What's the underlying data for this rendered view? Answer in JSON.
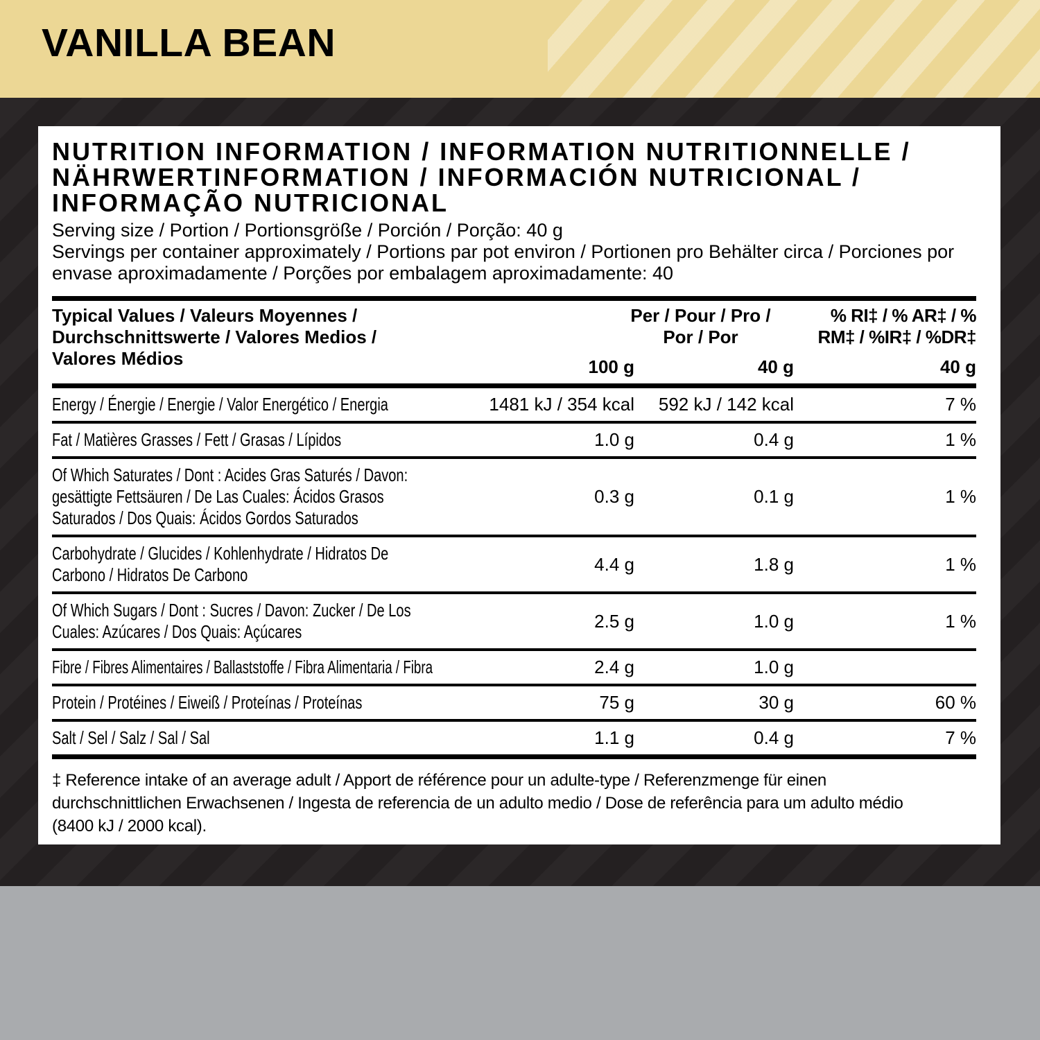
{
  "banner": {
    "flavor": "VANILLA BEAN"
  },
  "card": {
    "title": "NUTRITION INFORMATION / INFORMATION NUTRITIONNELLE / NÄHRWERTINFORMATION / INFORMACIÓN NUTRICIONAL / INFORMAÇÃO NUTRICIONAL",
    "serving_size_line": "Serving size / Portion / Portionsgröße / Porción / Porção: 40 g",
    "servings_per_container_line": "Servings per container approximately / Portions par pot environ / Portionen pro Behälter circa / Porciones por envase aproximadamente / Porções por embalagem aproximadamente: 40",
    "table": {
      "header": {
        "typical_values": "Typical Values / Valeurs Moyennes /\nDurchschnittswerte / Valores Medios /\nValores Médios",
        "per": "Per / Pour / Pro /\nPor / Por",
        "ri": "% RI‡ / % AR‡ / %\nRM‡ / %IR‡ / %DR‡",
        "col_100g": "100 g",
        "col_40g": "40 g",
        "col_ri_40g": "40 g"
      },
      "rows": [
        {
          "label": "Energy / Énergie / Energie / Valor Energético / Energia",
          "per_100g": "1481 kJ / 354 kcal",
          "per_40g": "592 kJ / 142 kcal",
          "ri_pct": "7 %"
        },
        {
          "label": "Fat / Matières Grasses / Fett / Grasas / Lípidos",
          "per_100g": "1.0 g",
          "per_40g": "0.4 g",
          "ri_pct": "1 %"
        },
        {
          "label": "Of Which Saturates / Dont : Acides Gras Saturés / Davon:\ngesättigte Fettsäuren / De Las Cuales: Ácidos Grasos\nSaturados / Dos Quais: Ácidos Gordos Saturados",
          "per_100g": "0.3 g",
          "per_40g": "0.1 g",
          "ri_pct": "1 %"
        },
        {
          "label": "Carbohydrate / Glucides / Kohlenhydrate / Hidratos De\nCarbono / Hidratos De Carbono",
          "per_100g": "4.4 g",
          "per_40g": "1.8 g",
          "ri_pct": "1 %"
        },
        {
          "label": "Of Which Sugars / Dont : Sucres / Davon: Zucker / De Los\nCuales: Azúcares / Dos Quais: Açúcares",
          "per_100g": "2.5 g",
          "per_40g": "1.0 g",
          "ri_pct": "1 %"
        },
        {
          "label": "Fibre / Fibres Alimentaires / Ballaststoffe / Fibra Alimentaria / Fibra",
          "per_100g": "2.4 g",
          "per_40g": "1.0 g",
          "ri_pct": ""
        },
        {
          "label": "Protein / Protéines / Eiweiß / Proteínas / Proteínas",
          "per_100g": "75 g",
          "per_40g": "30 g",
          "ri_pct": "60 %"
        },
        {
          "label": "Salt / Sel / Salz / Sal / Sal",
          "per_100g": "1.1 g",
          "per_40g": "0.4 g",
          "ri_pct": "7 %"
        }
      ]
    },
    "footnote": "‡ Reference intake of an average adult / Apport de référence pour un adulte-type / Referenzmenge für einen\ndurchschnittlichen Erwachsenen /  Ingesta de referencia de un adulto medio / Dose de referência para um adulto médio\n(8400 kJ / 2000 kcal)."
  },
  "colors": {
    "banner_background": "#ecd795",
    "banner_stripe": "#f3e6b8",
    "dark_background": "#242021",
    "dark_stripe": "#2b2728",
    "bottom_gray": "#a9abae",
    "card_background": "#ffffff",
    "text": "#000000"
  }
}
